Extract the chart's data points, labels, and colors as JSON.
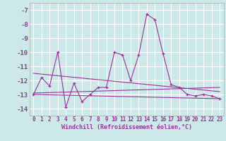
{
  "xlabel": "Windchill (Refroidissement éolien,°C)",
  "background_color": "#cce8e8",
  "grid_color": "#ffffff",
  "line_color": "#993399",
  "ylim": [
    -14.5,
    -6.5
  ],
  "xlim": [
    -0.5,
    23.5
  ],
  "yticks": [
    -14,
    -13,
    -12,
    -11,
    -10,
    -9,
    -8,
    -7
  ],
  "xticks": [
    0,
    1,
    2,
    3,
    4,
    5,
    6,
    7,
    8,
    9,
    10,
    11,
    12,
    13,
    14,
    15,
    16,
    17,
    18,
    19,
    20,
    21,
    22,
    23
  ],
  "series1": {
    "x": [
      0,
      1,
      2,
      3,
      4,
      5,
      6,
      7,
      8,
      9,
      10,
      11,
      12,
      13,
      14,
      15,
      16,
      17,
      18,
      19,
      20,
      21,
      22,
      23
    ],
    "y": [
      -13.0,
      -11.8,
      -12.4,
      -10.0,
      -13.9,
      -12.2,
      -13.5,
      -13.0,
      -12.5,
      -12.5,
      -10.0,
      -10.2,
      -12.0,
      -10.2,
      -7.3,
      -7.7,
      -10.1,
      -12.3,
      -12.5,
      -13.0,
      -13.1,
      -13.0,
      -13.1,
      -13.3
    ]
  },
  "series2": {
    "x": [
      0,
      23
    ],
    "y": [
      -13.0,
      -13.3
    ]
  },
  "series3": {
    "x": [
      0,
      23
    ],
    "y": [
      -12.9,
      -12.5
    ]
  },
  "series4": {
    "x": [
      0,
      23
    ],
    "y": [
      -11.5,
      -12.8
    ]
  }
}
